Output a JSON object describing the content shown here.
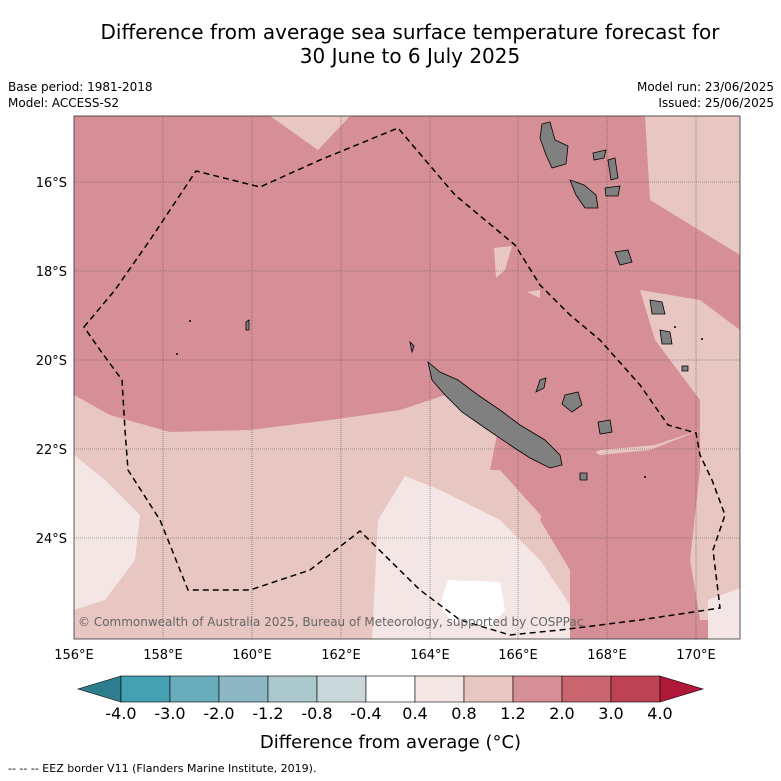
{
  "title": {
    "line1": "Difference from average sea surface temperature forecast for",
    "line2": "30 June to 6 July 2025"
  },
  "meta": {
    "base_period": "Base period: 1981-2018",
    "model": "Model: ACCESS-S2",
    "model_run": "Model run: 23/06/2025",
    "issued": "Issued: 25/06/2025"
  },
  "map": {
    "lon_ticks": [
      "156°E",
      "158°E",
      "160°E",
      "162°E",
      "164°E",
      "166°E",
      "168°E",
      "170°E"
    ],
    "lat_ticks": [
      "16°S",
      "18°S",
      "20°S",
      "22°S",
      "24°S"
    ],
    "copyright": "© Commonwealth of Australia 2025, Bureau of Meteorology, supported by COSPPac",
    "colors": {
      "band_1_2_to_2_0": "#d68f96",
      "band_0_8_to_1_2": "#e8c6c2",
      "band_0_4_to_0_8": "#f4e6e4",
      "band_neutral": "#ffffff",
      "land": "#808080",
      "eez_line": "#000000"
    }
  },
  "colorbar": {
    "title": "Difference from average (°C)",
    "labels": [
      "-4.0",
      "-3.0",
      "-2.0",
      "-1.2",
      "-0.8",
      "-0.4",
      "0.4",
      "0.8",
      "1.2",
      "2.0",
      "3.0",
      "4.0"
    ],
    "colors": [
      "#2e7d8c",
      "#45a1b1",
      "#69acbb",
      "#8db8c3",
      "#abc8cc",
      "#cbd8da",
      "#ffffff",
      "#f4e6e4",
      "#e8c6c2",
      "#d68f96",
      "#c9656f",
      "#bd4354",
      "#b0183a"
    ]
  },
  "footnote": "-- -- -- EEZ border V11 (Flanders Marine Institute, 2019)."
}
